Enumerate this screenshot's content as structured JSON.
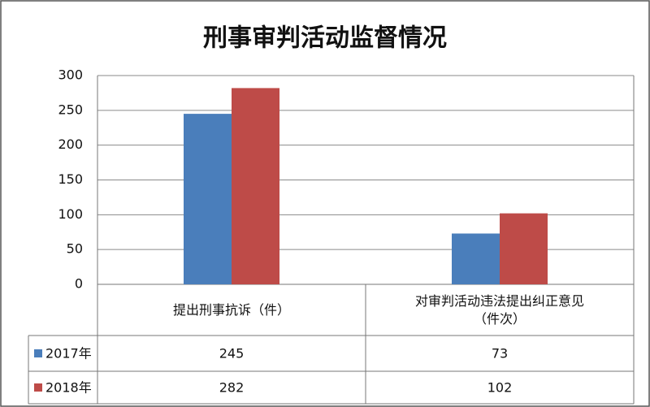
{
  "chart_data": {
    "type": "bar",
    "title": "刑事审判活动监督情况",
    "categories": [
      "提出刑事抗诉（件）",
      "对审判活动违法提出纠正意见（件次）"
    ],
    "series": [
      {
        "name": "2017年",
        "color": "#4a7ebb",
        "values": [
          245,
          73
        ]
      },
      {
        "name": "2018年",
        "color": "#be4b48",
        "values": [
          282,
          102
        ]
      }
    ],
    "ylim": [
      0,
      300
    ],
    "yticks": [
      0,
      50,
      100,
      150,
      200,
      250,
      300
    ],
    "grid": true
  }
}
